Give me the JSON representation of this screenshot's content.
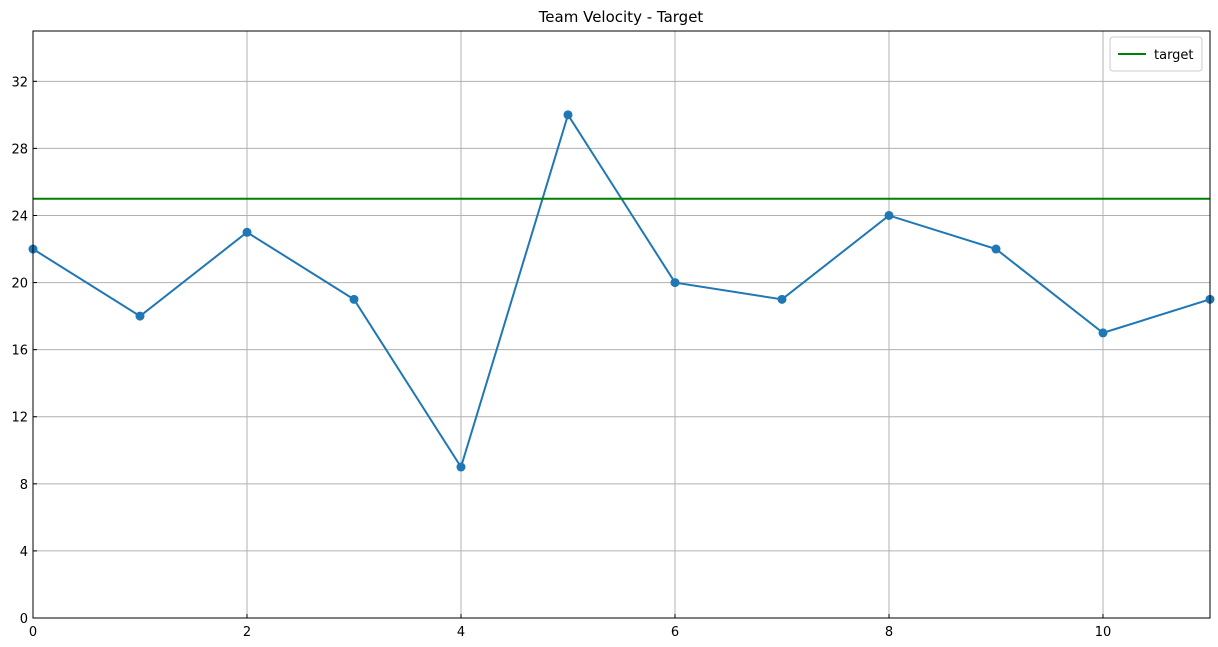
{
  "chart_data": {
    "type": "line",
    "title": "Team Velocity - Target",
    "xlabel": "",
    "ylabel": "",
    "x": [
      0,
      1,
      2,
      3,
      4,
      5,
      6,
      7,
      8,
      9,
      10,
      11
    ],
    "series": [
      {
        "values": [
          22,
          18,
          23,
          19,
          9,
          30,
          20,
          19,
          24,
          22,
          17,
          19
        ],
        "color": "#1f77b4",
        "marker": "circle"
      },
      {
        "name": "target",
        "values": [
          25,
          25,
          25,
          25,
          25,
          25,
          25,
          25,
          25,
          25,
          25,
          25
        ],
        "color": "#008000",
        "marker": "none"
      }
    ],
    "xlim": [
      0,
      11
    ],
    "ylim": [
      0,
      35
    ],
    "xticks": [
      "0",
      "2",
      "4",
      "6",
      "8",
      "10"
    ],
    "yticks": [
      "0",
      "4",
      "8",
      "12",
      "16",
      "20",
      "24",
      "28",
      "32"
    ],
    "grid": true,
    "legend": {
      "position": "top-right",
      "entries": [
        "target"
      ]
    }
  }
}
